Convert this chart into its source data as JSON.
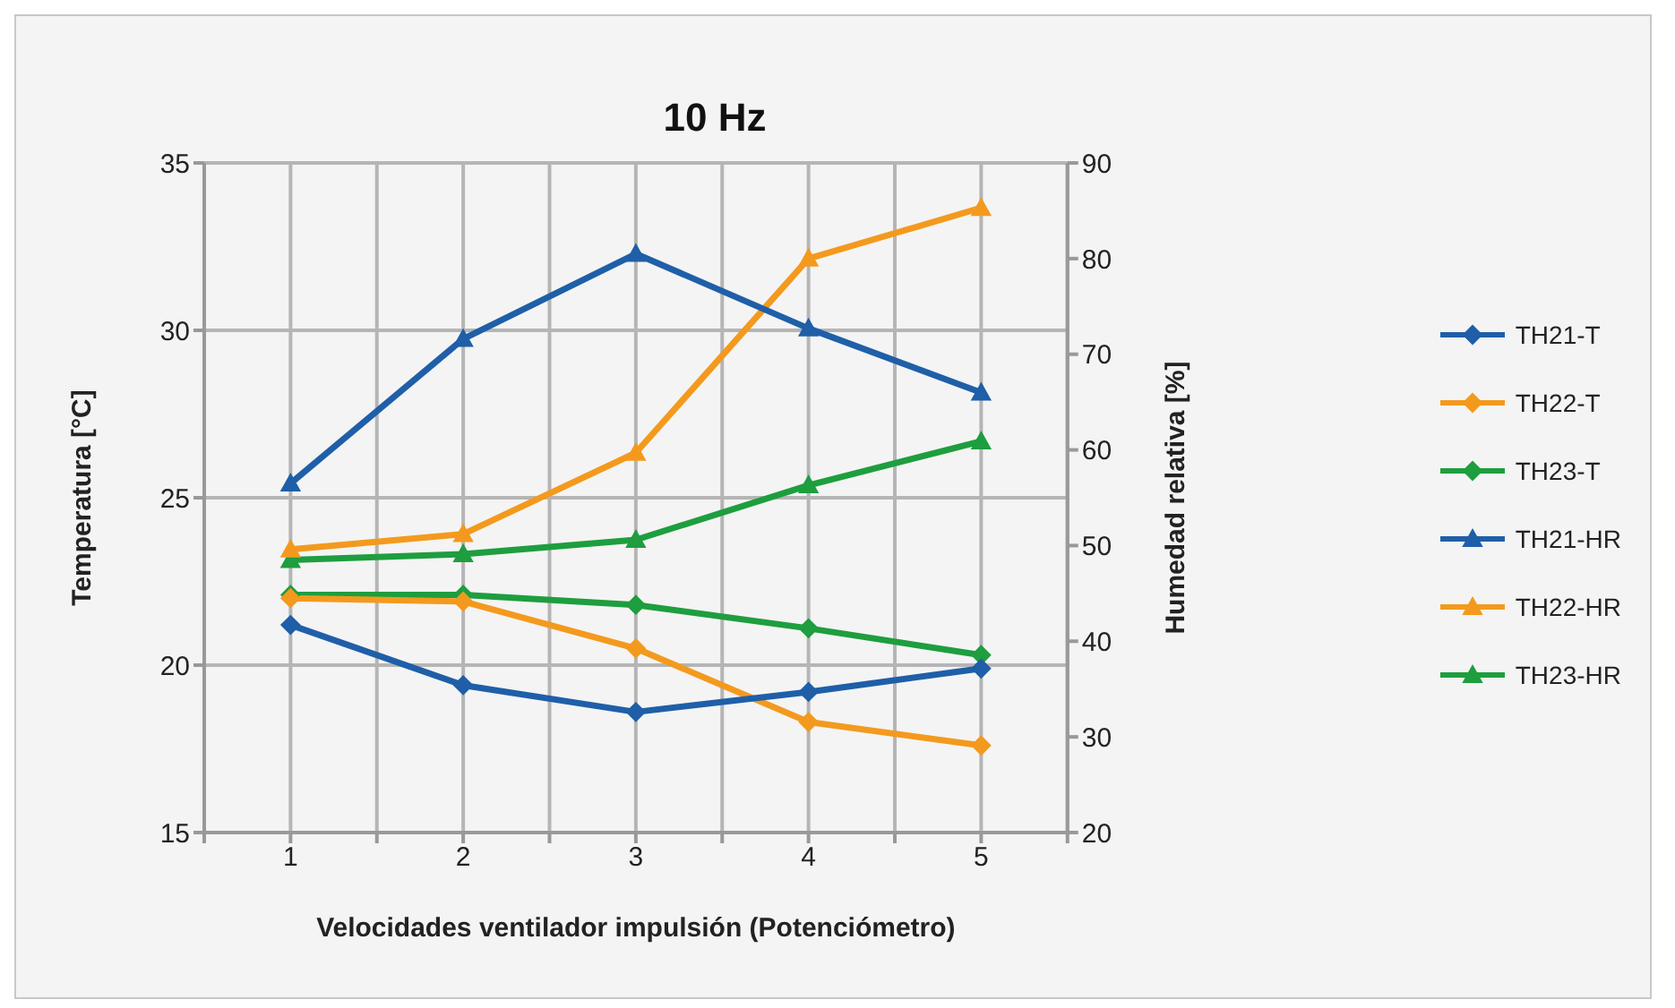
{
  "chart_data": {
    "type": "line",
    "title": "10 Hz",
    "xlabel": "Velocidades ventilador impulsión (Potenciómetro)",
    "ylabel": "Temperatura [°C]",
    "y2label": "Humedad relativa [%]",
    "x": [
      1,
      2,
      3,
      4,
      5
    ],
    "xlim": [
      0.5,
      5.5
    ],
    "xticks": [
      {
        "value": 0.5,
        "label": null
      },
      1,
      {
        "value": 1.5,
        "label": null
      },
      2,
      {
        "value": 2.5,
        "label": null
      },
      3,
      {
        "value": 3.5,
        "label": null
      },
      4,
      {
        "value": 4.5,
        "label": null
      },
      5,
      {
        "value": 5.5,
        "label": null
      }
    ],
    "ylim": [
      15,
      35
    ],
    "yticks": [
      15,
      20,
      25,
      30,
      35
    ],
    "y2lim": [
      20,
      90
    ],
    "y2ticks": [
      20,
      30,
      40,
      50,
      60,
      70,
      80,
      90
    ],
    "grid": true,
    "legend": "right",
    "series": [
      {
        "name": "TH21-T",
        "color": "#1f5fa8",
        "marker": "diamond",
        "values": [
          21.2,
          19.4,
          18.6,
          19.2,
          19.9
        ]
      },
      {
        "name": "TH22-T",
        "color": "#f39a1e",
        "marker": "diamond",
        "values": [
          22.0,
          21.9,
          20.5,
          18.3,
          17.6
        ]
      },
      {
        "name": "TH23-T",
        "color": "#1e9e3e",
        "marker": "diamond",
        "values": [
          22.1,
          22.1,
          21.8,
          21.1,
          20.3
        ]
      },
      {
        "name": "TH21-HR",
        "color": "#1f5fa8",
        "marker": "triangle",
        "axis": "y2",
        "values": [
          56.5,
          71.6,
          80.5,
          72.7,
          66.0
        ]
      },
      {
        "name": "TH22-HR",
        "color": "#f39a1e",
        "marker": "triangle",
        "axis": "y2",
        "values": [
          49.6,
          51.2,
          59.7,
          80.0,
          85.3
        ]
      },
      {
        "name": "TH23-HR",
        "color": "#1e9e3e",
        "marker": "triangle",
        "axis": "y2",
        "values": [
          48.5,
          49.1,
          50.6,
          56.3,
          60.9
        ]
      }
    ]
  }
}
